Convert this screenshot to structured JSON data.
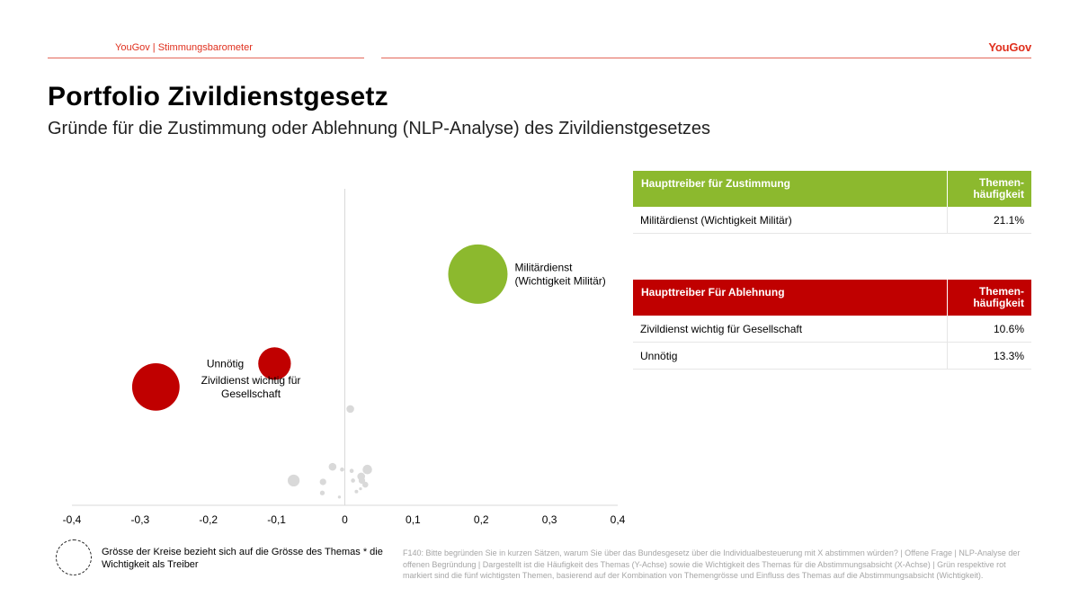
{
  "header": {
    "title": "YouGov | Stimmungsbarometer",
    "logo": "YouGov",
    "accent_color": "#e0301e"
  },
  "page": {
    "title": "Portfolio Zivildienstgesetz",
    "subtitle": "Gründe für die Zustimmung oder Ablehnung (NLP-Analyse) des Zivildienstgesetzes"
  },
  "chart_data": {
    "type": "scatter",
    "title": "",
    "xlabel": "",
    "ylabel": "",
    "xlim": [
      -0.4,
      0.4
    ],
    "x_ticks": [
      "-0,4",
      "-0,3",
      "-0,2",
      "-0,1",
      "0",
      "0,1",
      "0,2",
      "0,3",
      "0,4"
    ],
    "x_tick_values": [
      -0.4,
      -0.3,
      -0.2,
      -0.1,
      0,
      0.1,
      0.2,
      0.3,
      0.4
    ],
    "ylim": [
      0,
      23
    ],
    "y_axis_shown": false,
    "highlighted": [
      {
        "label": "Militärdienst\n(Wichtigkeit Militär)",
        "x": 0.195,
        "y": 16.8,
        "size": 1.0,
        "color": "#8cb92e",
        "label_side": "right"
      },
      {
        "label": "Unnötig",
        "x": -0.103,
        "y": 10.3,
        "size": 0.55,
        "color": "#c00000",
        "label_side": "left"
      },
      {
        "label": "Zivildienst wichtig für\nGesellschaft",
        "x": -0.277,
        "y": 8.6,
        "size": 0.8,
        "color": "#c00000",
        "label_side": "right"
      }
    ],
    "other_points": [
      {
        "x": 0.008,
        "y": 7.0,
        "size": 0.13
      },
      {
        "x": -0.075,
        "y": 1.8,
        "size": 0.2
      },
      {
        "x": -0.018,
        "y": 2.8,
        "size": 0.13
      },
      {
        "x": -0.032,
        "y": 1.7,
        "size": 0.11
      },
      {
        "x": -0.033,
        "y": 0.9,
        "size": 0.08
      },
      {
        "x": -0.008,
        "y": 0.6,
        "size": 0.05
      },
      {
        "x": -0.004,
        "y": 2.6,
        "size": 0.07
      },
      {
        "x": 0.01,
        "y": 2.5,
        "size": 0.07
      },
      {
        "x": 0.024,
        "y": 2.1,
        "size": 0.13
      },
      {
        "x": 0.025,
        "y": 1.8,
        "size": 0.11
      },
      {
        "x": 0.033,
        "y": 2.6,
        "size": 0.16
      },
      {
        "x": 0.03,
        "y": 1.5,
        "size": 0.1
      },
      {
        "x": 0.012,
        "y": 1.8,
        "size": 0.07
      },
      {
        "x": 0.017,
        "y": 1.0,
        "size": 0.06
      },
      {
        "x": 0.023,
        "y": 1.2,
        "size": 0.05
      }
    ],
    "other_color": "#d9d9d9",
    "grid": false
  },
  "table_approval": {
    "header_label": "Haupttreiber für Zustimmung",
    "header_value": "Themen-\nhäufigkeit",
    "color": "#8cb92e",
    "rows": [
      {
        "label": "Militärdienst (Wichtigkeit Militär)",
        "value": "21.1%"
      }
    ]
  },
  "table_rejection": {
    "header_label": "Haupttreiber Für Ablehnung",
    "header_value": "Themen-\nhäufigkeit",
    "color": "#c00000",
    "rows": [
      {
        "label": "Zivildienst wichtig für Gesellschaft",
        "value": "10.6%"
      },
      {
        "label": "Unnötig",
        "value": "13.3%"
      }
    ]
  },
  "legend": {
    "text": "Grösse der Kreise bezieht sich auf die Grösse des Themas * die Wichtigkeit als Treiber"
  },
  "footnote": "F140: Bitte begründen Sie in kurzen Sätzen, warum Sie über das Bundesgesetz über die Individualbesteuerung mit X abstimmen würden? | Offene Frage | NLP-Analyse der offenen Begründung | Dargestellt ist die Häufigkeit des Themas (Y-Achse) sowie die Wichtigkeit des Themas für die Abstimmungsabsicht (X-Achse) | Grün respektive rot markiert sind die fünf wichtigsten Themen, basierend auf der Kombination von Themengrösse und Einfluss des Themas auf die Abstimmungsabsicht (Wichtigkeit)."
}
